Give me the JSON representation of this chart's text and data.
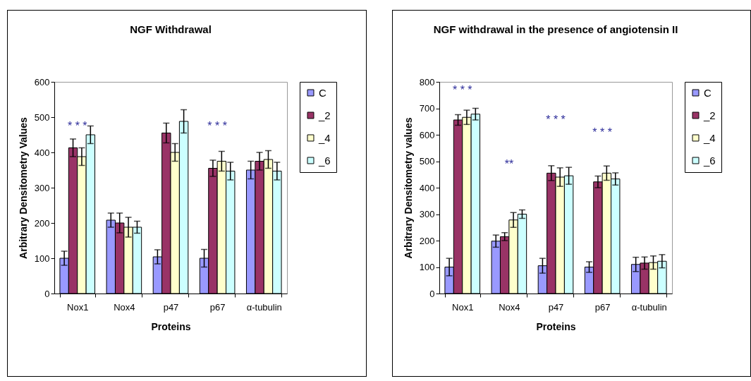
{
  "chart_data": [
    {
      "type": "bar",
      "title": "NGF Withdrawal",
      "xlabel": "Proteins",
      "ylabel": "Arbitrary Densitometry Values",
      "categories": [
        "Nox1",
        "Nox4",
        "p47",
        "p67",
        "α-tubulin"
      ],
      "ylim": [
        0,
        600
      ],
      "yticks": [
        0,
        100,
        200,
        300,
        400,
        500,
        600
      ],
      "grid": false,
      "legend": "right",
      "series": [
        {
          "name": "C",
          "color": "#9999ff",
          "values": [
            100,
            208,
            104,
            100,
            350
          ],
          "errors": [
            20,
            20,
            20,
            25,
            25
          ]
        },
        {
          "name": "_2",
          "color": "#993366",
          "values": [
            413,
            200,
            455,
            355,
            375
          ],
          "errors": [
            25,
            28,
            28,
            23,
            25
          ]
        },
        {
          "name": "_4",
          "color": "#ffffcc",
          "values": [
            388,
            188,
            400,
            375,
            380
          ],
          "errors": [
            25,
            28,
            25,
            28,
            25
          ]
        },
        {
          "name": "_6",
          "color": "#ccffff",
          "values": [
            450,
            188,
            488,
            347,
            347
          ],
          "errors": [
            25,
            17,
            33,
            25,
            25
          ]
        }
      ],
      "annotations": [
        "* * *",
        "* * *"
      ]
    },
    {
      "type": "bar",
      "title": "NGF withdrawal in the presence of angiotensin II",
      "xlabel": "Proteins",
      "ylabel": "Arbitrary Densitometry values",
      "categories": [
        "Nox1",
        "Nox4",
        "p47",
        "p67",
        "α-tubulin"
      ],
      "ylim": [
        0,
        800
      ],
      "yticks": [
        0,
        100,
        200,
        300,
        400,
        500,
        600,
        700,
        800
      ],
      "grid": false,
      "legend": "right",
      "series": [
        {
          "name": "C",
          "color": "#9999ff",
          "values": [
            100,
            198,
            105,
            100,
            110
          ],
          "errors": [
            33,
            23,
            28,
            20,
            27
          ]
        },
        {
          "name": "_2",
          "color": "#993366",
          "values": [
            656,
            215,
            455,
            422,
            115
          ],
          "errors": [
            20,
            15,
            28,
            22,
            23
          ]
        },
        {
          "name": "_4",
          "color": "#ffffcc",
          "values": [
            666,
            278,
            440,
            455,
            117
          ],
          "errors": [
            27,
            28,
            35,
            27,
            25
          ]
        },
        {
          "name": "_6",
          "color": "#ccffff",
          "values": [
            678,
            300,
            445,
            433,
            122
          ],
          "errors": [
            22,
            16,
            32,
            23,
            25
          ]
        }
      ],
      "annotations": [
        "* * *",
        "**",
        "* * *",
        "* * *"
      ]
    }
  ]
}
